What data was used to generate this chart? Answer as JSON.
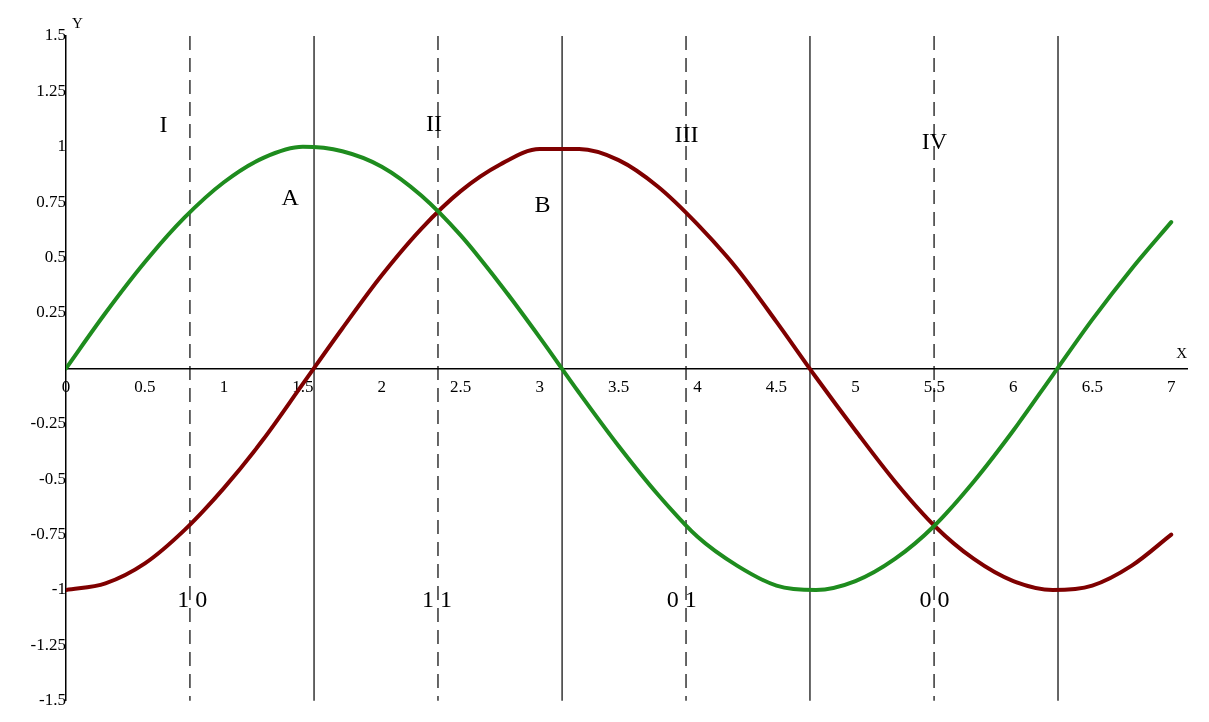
{
  "chart_data": {
    "type": "line",
    "xlabel": "X",
    "ylabel": "Y",
    "x": [
      0,
      0.25,
      0.5,
      0.75,
      1,
      1.25,
      1.5,
      1.75,
      2,
      2.25,
      2.5,
      2.75,
      3,
      3.25,
      3.5,
      3.75,
      4,
      4.25,
      4.5,
      4.75,
      5,
      5.25,
      5.5,
      5.75,
      6,
      6.25,
      6.5,
      6.75,
      7
    ],
    "series": [
      {
        "color": "#1e8c1e",
        "values": [
          0,
          0.25,
          0.48,
          0.68,
          0.84,
          0.95,
          1.0,
          0.98,
          0.91,
          0.78,
          0.6,
          0.38,
          0.14,
          -0.11,
          -0.35,
          -0.57,
          -0.76,
          -0.89,
          -0.98,
          -1.0,
          -0.96,
          -0.86,
          -0.71,
          -0.51,
          -0.28,
          -0.03,
          0.22,
          0.45,
          0.66
        ]
      },
      {
        "color": "#7f0000",
        "values": [
          -1,
          -0.97,
          -0.88,
          -0.73,
          -0.54,
          -0.32,
          -0.07,
          0.18,
          0.42,
          0.63,
          0.8,
          0.92,
          0.99,
          0.99,
          0.94,
          0.82,
          0.65,
          0.45,
          0.21,
          -0.04,
          -0.28,
          -0.51,
          -0.71,
          -0.86,
          -0.96,
          -1.0,
          -0.98,
          -0.89,
          -0.75
        ]
      }
    ],
    "xlim": [
      0,
      7.1
    ],
    "ylim": [
      -1.5,
      1.5
    ],
    "xticks": [
      0,
      0.5,
      1,
      1.5,
      2,
      2.5,
      3,
      3.5,
      4,
      4.5,
      5,
      5.5,
      6,
      6.5,
      7
    ],
    "yticks": [
      -1.5,
      -1.25,
      -1,
      -0.75,
      -0.5,
      -0.25,
      {
        "value": 0,
        "label": null
      },
      0.25,
      0.5,
      0.75,
      1,
      1.25,
      1.5
    ],
    "ref_lines": [
      {
        "axis": "x",
        "value": 0.785,
        "line_style": "dashed",
        "color": "#000000"
      },
      {
        "axis": "x",
        "value": 1.571,
        "line_style": "solid",
        "color": "#000000"
      },
      {
        "axis": "x",
        "value": 2.356,
        "line_style": "dashed",
        "color": "#000000"
      },
      {
        "axis": "x",
        "value": 3.142,
        "line_style": "solid",
        "color": "#000000"
      },
      {
        "axis": "x",
        "value": 3.927,
        "line_style": "dashed",
        "color": "#000000"
      },
      {
        "axis": "x",
        "value": 4.712,
        "line_style": "solid",
        "color": "#000000"
      },
      {
        "axis": "x",
        "value": 5.498,
        "line_style": "dashed",
        "color": "#000000"
      },
      {
        "axis": "x",
        "value": 6.283,
        "line_style": "solid",
        "color": "#000000"
      }
    ],
    "annotations": [
      "I",
      "A",
      {
        "text": "II",
        "x": 2.33,
        "y": 1.1
      },
      "B",
      {
        "text": "III",
        "x": 3.93,
        "y": 1.05
      },
      {
        "text": "IV",
        "x": 5.5,
        "y": 1.02
      },
      {
        "text": "1 0",
        "x": 0.8,
        "y": -1.05
      },
      {
        "text": "1 1",
        "x": 2.35,
        "y": -1.05
      },
      {
        "text": "0 1",
        "x": 3.9,
        "y": -1.05
      },
      {
        "text": "0 0",
        "x": 5.5,
        "y": -1.05
      }
    ],
    "grid": false,
    "legend": false,
    "marker": "none",
    "line_style": "solid"
  }
}
